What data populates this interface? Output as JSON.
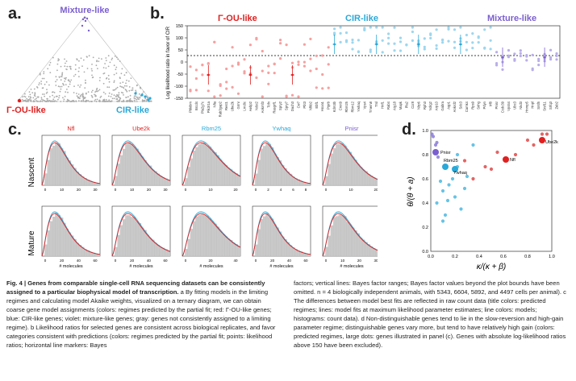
{
  "panels": {
    "a": {
      "letter": "a.",
      "labels": {
        "top": "Mixture-like",
        "left": "Γ-OU-like",
        "right": "CIR-like"
      },
      "colors": {
        "top": "#7b5fd0",
        "left": "#e02020",
        "right": "#2aa8d8"
      }
    },
    "b": {
      "letter": "b.",
      "ylabel": "Log likelihood ratio in favor of CIR",
      "yticks": [
        "150",
        "100",
        "50",
        "0",
        "-50",
        "-100",
        "-150"
      ],
      "groups": [
        {
          "name": "Γ-OU-like",
          "color": "#e02020"
        },
        {
          "name": "CIR-like",
          "color": "#2aa8d8"
        },
        {
          "name": "Mixture-like",
          "color": "#7b5fd0"
        }
      ],
      "genes_red": [
        "Pbkibm",
        "Brcd4",
        "Pla2g7c",
        "Pik3r1a",
        "Nfia",
        "Rab3gap2",
        "Rest1",
        "Ube2k",
        "Grmr",
        "Lrrc8c",
        "Aebp2",
        "Ndst2",
        "Ankmf3",
        "Tcfn",
        "Rasgrf1",
        "Spry2",
        "Spry7",
        "Dach3",
        "Cw7",
        "Pbt3",
        "Nfkb2",
        "Ebf1",
        "Hoxa1",
        "Ptprb"
      ],
      "genes_cyan": [
        "Kdm3b",
        "Cnot9",
        "Rbm25",
        "Rbm12",
        "Ywhaq",
        "Vps4",
        "Tmem8",
        "Trsl",
        "Hnf1",
        "Rab4",
        "Atg18",
        "Mapk",
        "Pla2",
        "Ccr8",
        "Nlrp6",
        "Rph3",
        "Ndrg2",
        "Arp10",
        "Gabra",
        "Aqp1",
        "Ankrd2",
        "Sdc3",
        "Camk4",
        "Rps9",
        "Snhg",
        "Pdyn",
        "Irf8"
      ],
      "genes_purple": [
        "Pnisr",
        "Ccdc39",
        "Vps54",
        "Ubc3",
        "Nkd3",
        "Hnrnp5",
        "Hnpl",
        "Srsf5",
        "Srsf11",
        "Srfq3",
        "Zeb2"
      ]
    },
    "c": {
      "letter": "c.",
      "row_labels": [
        "Nascent",
        "Mature"
      ],
      "xlabel": "# molecules",
      "genes": [
        {
          "name": "Nfl",
          "color": "#e02020",
          "nascent_ticks": [
            "0",
            "10",
            "20",
            "30"
          ],
          "mature_ticks": [
            "0",
            "20",
            "40",
            "60"
          ]
        },
        {
          "name": "Ube2k",
          "color": "#e02020",
          "nascent_ticks": [
            "0",
            "10",
            "20",
            "30"
          ],
          "mature_ticks": [
            "0",
            "20",
            "40",
            "60"
          ]
        },
        {
          "name": "Rbm25",
          "color": "#2aa8d8",
          "nascent_ticks": [
            "0",
            "10",
            "20"
          ],
          "mature_ticks": [
            "0",
            "20",
            "40"
          ]
        },
        {
          "name": "Ywhaq",
          "color": "#2aa8d8",
          "nascent_ticks": [
            "0",
            "2",
            "4",
            "6",
            "8"
          ],
          "mature_ticks": [
            "0",
            "20",
            "40",
            "60"
          ]
        },
        {
          "name": "Pnisr",
          "color": "#7b5fd0",
          "nascent_ticks": [
            "0",
            "10",
            "20"
          ],
          "mature_ticks": [
            "0",
            "10",
            "20",
            "30"
          ]
        }
      ]
    },
    "d": {
      "letter": "d.",
      "xlabel": "κ/(κ + β)",
      "ylabel": "θ/(θ + a)",
      "xticks": [
        "0.0",
        "0.2",
        "0.4",
        "0.6",
        "0.8",
        "1.0"
      ],
      "yticks": [
        "0.0",
        "0.2",
        "0.4",
        "0.6",
        "0.8",
        "1.0"
      ],
      "labels": [
        "Ube2k",
        "Nfl",
        "Pnisr",
        "Rbm25",
        "Ywhaq"
      ],
      "colors": {
        "red": "#e04848",
        "cyan": "#4bb9e0",
        "purple": "#8a7ad8"
      }
    }
  },
  "chart_data": [
    {
      "type": "scatter",
      "title": "",
      "xlabel": "κ/(κ + β)",
      "ylabel": "θ/(θ + a)",
      "xlim": [
        0,
        1
      ],
      "ylim": [
        0,
        1
      ],
      "series": [
        {
          "color": "#e04848",
          "x": [
            0.62,
            0.8,
            0.92,
            0.96,
            0.55,
            0.35,
            0.45,
            0.7,
            0.85,
            0.28,
            0.5
          ],
          "y": [
            0.76,
            0.92,
            0.97,
            0.97,
            0.82,
            0.6,
            0.7,
            0.8,
            0.88,
            0.75,
            0.68
          ]
        },
        {
          "color": "#4bb9e0",
          "x": [
            0.22,
            0.15,
            0.1,
            0.2,
            0.3,
            0.05,
            0.12,
            0.25,
            0.18,
            0.08,
            0.22,
            0.35,
            0.14,
            0.28,
            0.1
          ],
          "y": [
            0.7,
            0.55,
            0.5,
            0.45,
            0.62,
            0.4,
            0.3,
            0.35,
            0.6,
            0.58,
            0.8,
            0.88,
            0.42,
            0.52,
            0.25
          ]
        },
        {
          "color": "#8a7ad8",
          "x": [
            0.03,
            0.05,
            0.02,
            0.01,
            0.04,
            0.06
          ],
          "y": [
            0.82,
            0.9,
            0.95,
            0.97,
            0.88,
            0.78
          ]
        }
      ],
      "annotations": [
        "Ube2k",
        "Nfl",
        "Pnisr",
        "Rbm25",
        "Ywhaq"
      ]
    }
  ],
  "caption": {
    "fig": "Fig. 4 | ",
    "title": "Genes from comparable single-cell RNA sequencing datasets can be consistently assigned to a particular biophysical model of transcription.",
    "left_rest": "a By fitting models in the limiting regimes and calculating model Akaike weights, visualized on a ternary diagram, we can obtain coarse gene model assignments (colors: regimes predicted by the partial fit; red: Γ-OU-like genes; blue: CIR-like genes; violet: mixture-like genes; gray: genes not consistently assigned to a limiting regime). b Likelihood ratios for selected genes are consistent across biological replicates, and favor categories consistent with predictions (colors: regimes predicted by the partial fit; points: likelihood ratios; horizontal line markers: Bayes",
    "right": "factors; vertical lines: Bayes factor ranges; Bayes factor values beyond the plot bounds have been omitted. n = 4 biologically independent animals, with 5343, 6604, 5892, and 4497 cells per animal). c The differences between model best fits are reflected in raw count data (title colors: predicted regimes; lines: model fits at maximum likelihood parameter estimates; line colors: models; histograms: count data). d Non-distinguishable genes tend to lie in the slow-reversion and high-gain parameter regime; distinguishable genes vary more, but tend to have relatively high gain (colors: predicted regimes, large dots: genes illustrated in panel (c). Genes with absolute log-likelihood ratios above 150 have been excluded)."
  }
}
